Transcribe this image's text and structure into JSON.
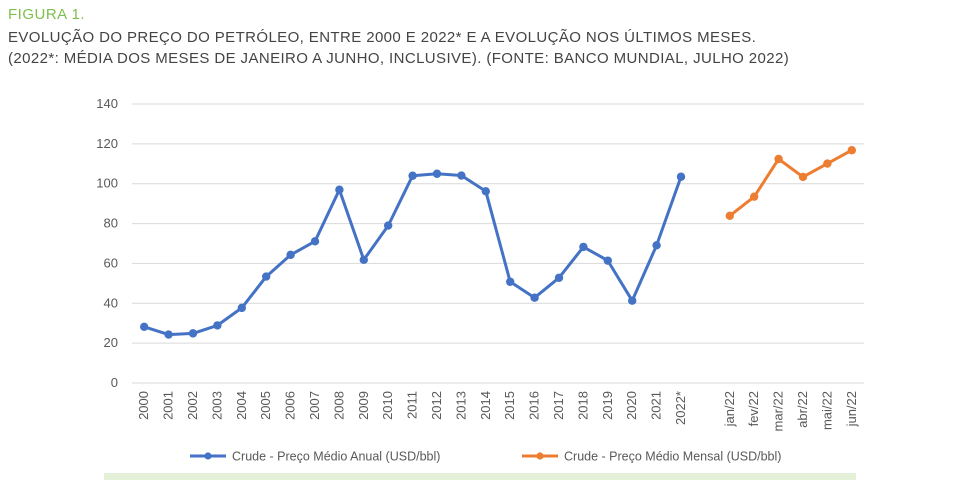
{
  "header": {
    "label": "FIGURA 1.",
    "title": "EVOLUÇÃO DO PREÇO DO PETRÓLEO, ENTRE 2000 E 2022* E A EVOLUÇÃO NOS ÚLTIMOS MESES.",
    "subtitle": "(2022*: MÉDIA DOS MESES DE JANEIRO A JUNHO, INCLUSIVE).  (FONTE: BANCO MUNDIAL, JULHO 2022)"
  },
  "chart_data": {
    "type": "line",
    "categories": [
      "2000",
      "2001",
      "2002",
      "2003",
      "2004",
      "2005",
      "2006",
      "2007",
      "2008",
      "2009",
      "2010",
      "2011",
      "2012",
      "2013",
      "2014",
      "2015",
      "2016",
      "2017",
      "2018",
      "2019",
      "2020",
      "2021",
      "2022*",
      "",
      "jan/22",
      "fev/22",
      "mar/22",
      "abr/22",
      "mai/22",
      "jun/22"
    ],
    "series": [
      {
        "name": "Crude - Preço Médio Anual (USD/bbl)",
        "color": "#4472c4",
        "values": [
          28.2,
          24.3,
          24.9,
          28.9,
          37.7,
          53.4,
          64.3,
          71.1,
          97.0,
          61.8,
          79.0,
          104.0,
          105.0,
          104.1,
          96.2,
          50.8,
          42.8,
          52.8,
          68.3,
          61.4,
          41.3,
          69.1,
          103.5,
          null,
          null,
          null,
          null,
          null,
          null,
          null
        ]
      },
      {
        "name": "Crude - Preço Médio Mensal (USD/bbl)",
        "color": "#ed7d31",
        "values": [
          null,
          null,
          null,
          null,
          null,
          null,
          null,
          null,
          null,
          null,
          null,
          null,
          null,
          null,
          null,
          null,
          null,
          null,
          null,
          null,
          null,
          null,
          null,
          null,
          83.9,
          93.5,
          112.4,
          103.4,
          110.1,
          116.8
        ]
      }
    ],
    "yticks": [
      0,
      20,
      40,
      60,
      80,
      100,
      120,
      140
    ],
    "ylim": [
      0,
      140
    ],
    "grid": true,
    "legend_position": "bottom"
  }
}
